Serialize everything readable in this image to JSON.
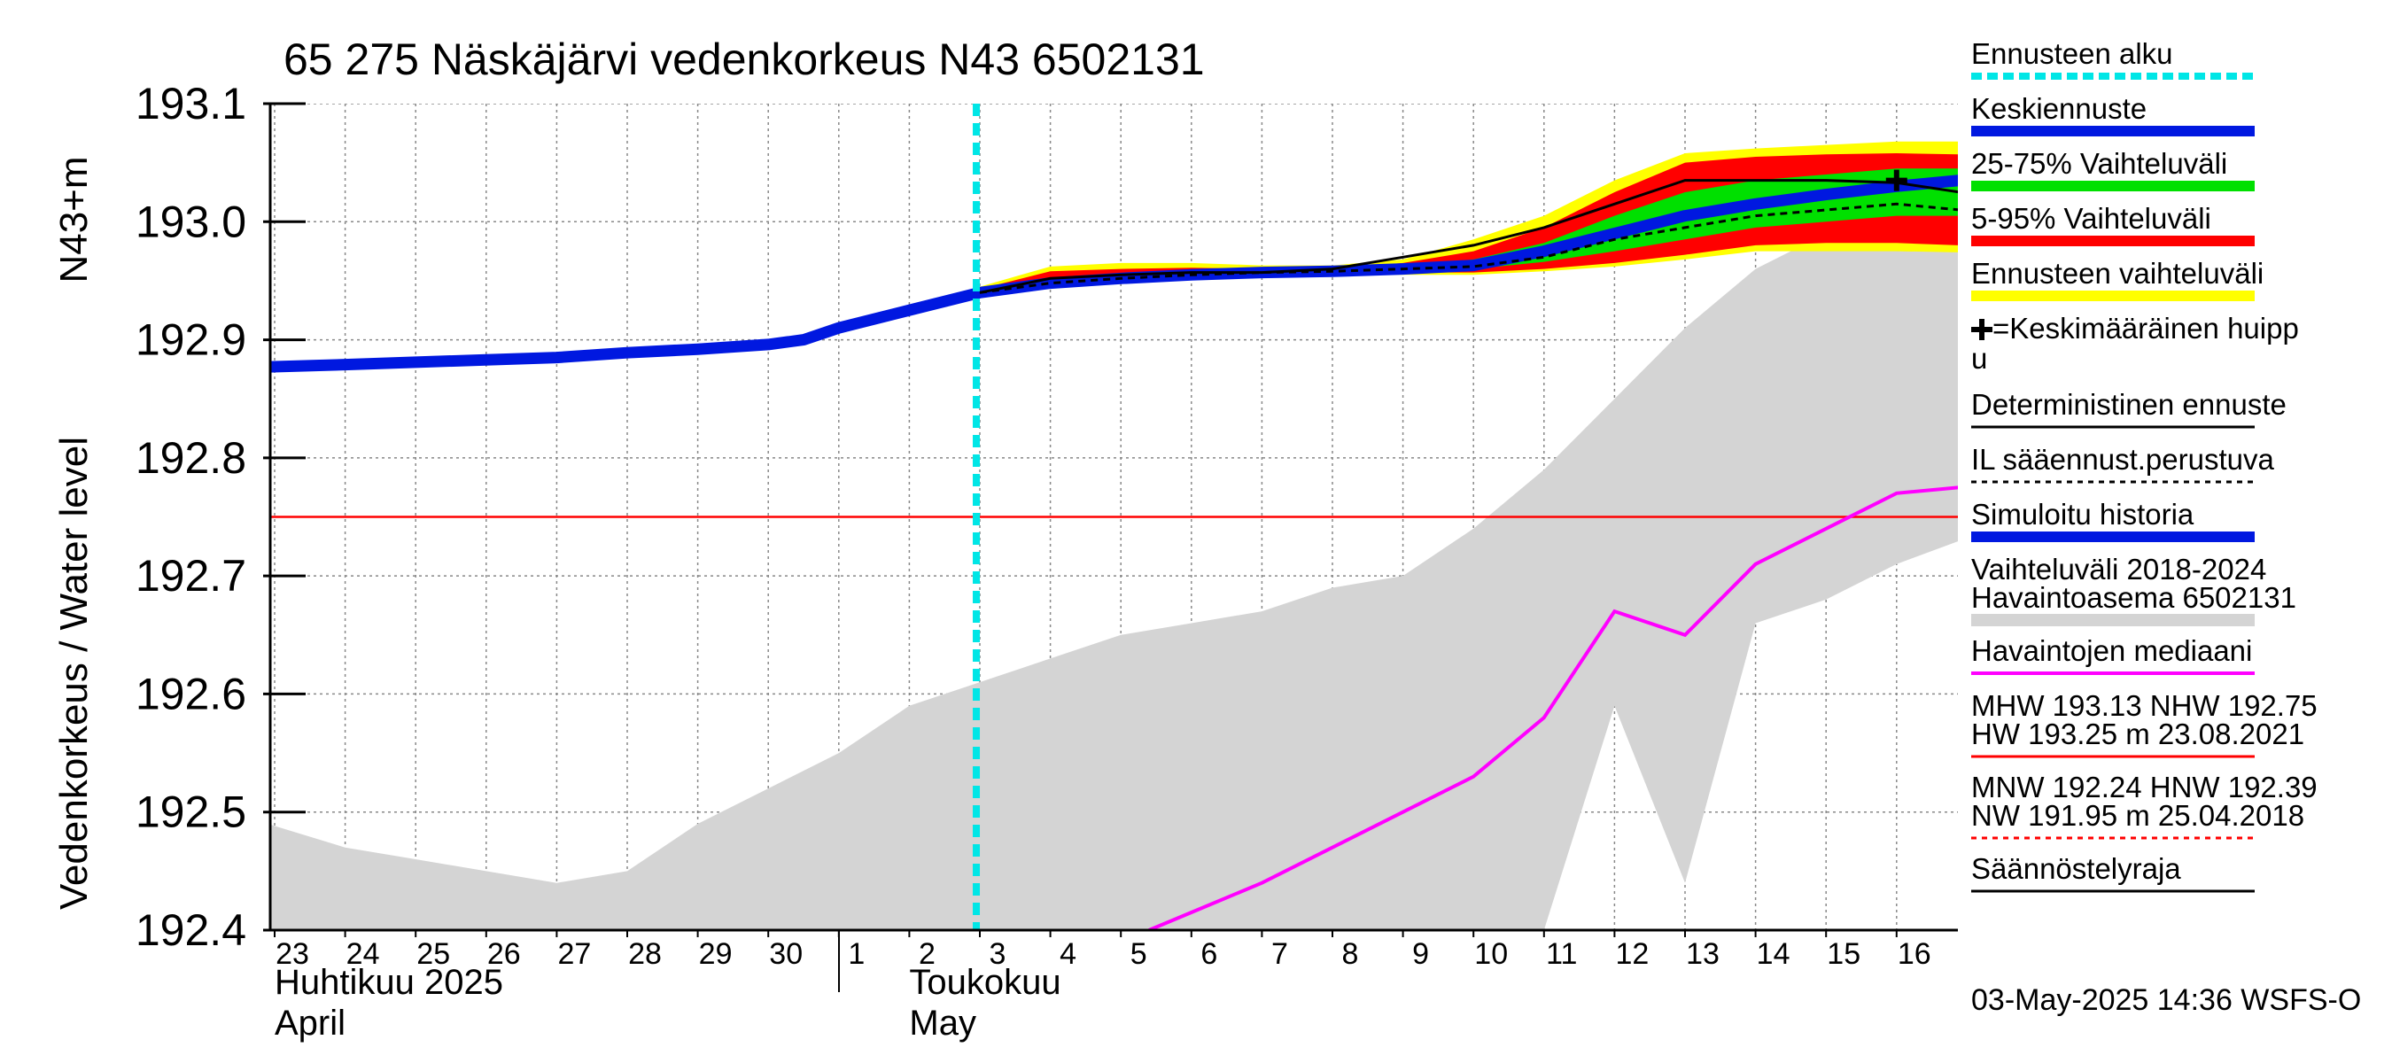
{
  "chart_data": {
    "type": "line",
    "title": "65 275 Näskäjärvi vedenkorkeus N43 6502131",
    "ylabel_main": "Vedenkorkeus / Water level",
    "ylabel_unit": "N43+m",
    "ylim": [
      192.4,
      193.1
    ],
    "yticks": [
      "192.4",
      "192.5",
      "192.6",
      "192.7",
      "192.8",
      "192.9",
      "193.0",
      "193.1"
    ],
    "ytick_values": [
      192.4,
      192.5,
      192.6,
      192.7,
      192.8,
      192.9,
      193.0,
      193.1
    ],
    "xlim": [
      -0.1,
      23.9
    ],
    "days": [
      {
        "label": "23",
        "x": 0
      },
      {
        "label": "24",
        "x": 1
      },
      {
        "label": "25",
        "x": 2
      },
      {
        "label": "26",
        "x": 3
      },
      {
        "label": "27",
        "x": 4
      },
      {
        "label": "28",
        "x": 5
      },
      {
        "label": "29",
        "x": 6
      },
      {
        "label": "30",
        "x": 7
      },
      {
        "label": "1",
        "x": 8
      },
      {
        "label": "2",
        "x": 9
      },
      {
        "label": "3",
        "x": 10
      },
      {
        "label": "4",
        "x": 11
      },
      {
        "label": "5",
        "x": 12
      },
      {
        "label": "6",
        "x": 13
      },
      {
        "label": "7",
        "x": 14
      },
      {
        "label": "8",
        "x": 15
      },
      {
        "label": "9",
        "x": 16
      },
      {
        "label": "10",
        "x": 17
      },
      {
        "label": "11",
        "x": 18
      },
      {
        "label": "12",
        "x": 19
      },
      {
        "label": "13",
        "x": 20
      },
      {
        "label": "14",
        "x": 21
      },
      {
        "label": "15",
        "x": 22
      },
      {
        "label": "16",
        "x": 23
      }
    ],
    "month_labels": [
      {
        "line1": "Huhtikuu  2025",
        "line2": "April",
        "x": 0
      },
      {
        "line1": "Toukokuu",
        "line2": "May",
        "x": 9
      }
    ],
    "month_divider_x": 7.5,
    "forecast_start_x": 9.95,
    "regulation_limit": 192.75,
    "series": {
      "simulated_history": {
        "name": "Simuloitu historia",
        "x": [
          -0.1,
          1,
          2,
          3,
          4,
          5,
          6,
          7,
          7.5,
          8,
          9,
          10,
          11,
          12,
          13,
          14,
          15,
          16,
          17,
          18,
          19,
          20,
          21,
          22,
          23,
          23.9
        ],
        "y": [
          192.877,
          192.879,
          192.881,
          192.883,
          192.885,
          192.889,
          192.892,
          192.896,
          192.9,
          192.91,
          192.925,
          192.94,
          192.948,
          192.952,
          192.955,
          192.957,
          192.958,
          192.96,
          192.963,
          192.975,
          192.99,
          193.005,
          193.015,
          193.023,
          193.03,
          193.035
        ]
      },
      "deterministic": {
        "name": "Deterministinen ennuste",
        "x": [
          10,
          11,
          12,
          13,
          14,
          15,
          16,
          17,
          18,
          19,
          20,
          21,
          22,
          23,
          23.9
        ],
        "y": [
          192.94,
          192.952,
          192.955,
          192.957,
          192.957,
          192.96,
          192.97,
          192.98,
          192.995,
          193.015,
          193.035,
          193.035,
          193.035,
          193.033,
          193.025
        ]
      },
      "il_forecast": {
        "name": "IL sääennust.perustuva",
        "x": [
          10,
          11,
          12,
          13,
          14,
          15,
          16,
          17,
          18,
          19,
          20,
          21,
          22,
          23,
          23.9
        ],
        "y": [
          192.94,
          192.948,
          192.952,
          192.955,
          192.957,
          192.958,
          192.96,
          192.962,
          192.97,
          192.985,
          192.995,
          193.005,
          193.01,
          193.015,
          193.01
        ]
      },
      "band_yellow": {
        "name": "Ennusteen vaihteluväli",
        "x": [
          10,
          11,
          12,
          13,
          14,
          15,
          16,
          17,
          18,
          19,
          20,
          21,
          22,
          23,
          23.9
        ],
        "upper": [
          192.945,
          192.962,
          192.965,
          192.965,
          192.963,
          192.963,
          192.968,
          192.985,
          193.005,
          193.035,
          193.058,
          193.062,
          193.065,
          193.068,
          193.068
        ],
        "lower": [
          192.94,
          192.945,
          192.948,
          192.952,
          192.955,
          192.955,
          192.955,
          192.955,
          192.958,
          192.962,
          192.968,
          192.975,
          192.975,
          192.975,
          192.974
        ]
      },
      "band_red": {
        "name": "5-95% Vaihteluväli",
        "x": [
          10,
          11,
          12,
          13,
          14,
          15,
          16,
          17,
          18,
          19,
          20,
          21,
          22,
          23,
          23.9
        ],
        "upper": [
          192.943,
          192.958,
          192.96,
          192.961,
          192.96,
          192.96,
          192.965,
          192.975,
          192.995,
          193.025,
          193.05,
          193.055,
          193.057,
          193.058,
          193.057
        ],
        "lower": [
          192.94,
          192.946,
          192.949,
          192.953,
          192.956,
          192.957,
          192.957,
          192.957,
          192.96,
          192.965,
          192.972,
          192.98,
          192.982,
          192.982,
          192.98
        ]
      },
      "band_green": {
        "name": "25-75% Vaihteluväli",
        "x": [
          10,
          11,
          12,
          13,
          14,
          15,
          16,
          17,
          18,
          19,
          20,
          21,
          22,
          23,
          23.9
        ],
        "upper": [
          192.941,
          192.95,
          192.954,
          192.956,
          192.957,
          192.958,
          192.962,
          192.968,
          192.982,
          193.005,
          193.025,
          193.035,
          193.04,
          193.045,
          193.045
        ],
        "lower": [
          192.94,
          192.948,
          192.951,
          192.954,
          192.956,
          192.957,
          192.958,
          192.96,
          192.966,
          192.975,
          192.985,
          192.995,
          193.0,
          193.005,
          193.005
        ]
      },
      "history_range": {
        "name": "Vaihteluväli 2018-2024 Havaintoasema 6502131",
        "x": [
          -0.1,
          1,
          2,
          3,
          4,
          5,
          6,
          7,
          8,
          9,
          10,
          11,
          12,
          13,
          14,
          15,
          16,
          17,
          18,
          19,
          20,
          21,
          22,
          23,
          23.9
        ],
        "upper": [
          192.49,
          192.47,
          192.46,
          192.45,
          192.44,
          192.45,
          192.49,
          192.52,
          192.55,
          192.59,
          192.61,
          192.63,
          192.65,
          192.66,
          192.67,
          192.69,
          192.7,
          192.74,
          192.79,
          192.85,
          192.91,
          192.96,
          192.99,
          193.01,
          193.02
        ],
        "lower": [
          192.4,
          192.4,
          192.4,
          192.4,
          192.4,
          192.4,
          192.4,
          192.4,
          192.4,
          192.4,
          192.4,
          192.4,
          192.4,
          192.4,
          192.4,
          192.4,
          192.4,
          192.4,
          192.4,
          192.59,
          192.44,
          192.66,
          192.68,
          192.71,
          192.73
        ]
      },
      "median": {
        "name": "Havaintojen mediaani",
        "x": [
          12.4,
          13,
          14,
          15,
          16,
          17,
          18,
          19,
          20,
          21,
          22,
          23,
          23.9
        ],
        "y": [
          192.4,
          192.415,
          192.44,
          192.47,
          192.5,
          192.53,
          192.58,
          192.67,
          192.65,
          192.71,
          192.74,
          192.77,
          192.775
        ]
      }
    },
    "mean_peak": {
      "x": 23,
      "y": 193.035
    },
    "colors": {
      "simulated": "#0018e0",
      "deterministic": "#000000",
      "il": "#000000",
      "green": "#00e000",
      "red": "#ff0000",
      "yellow": "#ffff00",
      "history_range": "#d4d4d4",
      "median": "#ff00ff",
      "forecast_start": "#00e6e6",
      "regulation": "#ff0000",
      "grid": "#888888"
    },
    "legend": [
      {
        "label": "Ennusteen alku",
        "style": "dash-cyan"
      },
      {
        "label": "Keskiennuste",
        "style": "thick-blue"
      },
      {
        "label": "25-75% Vaihteluväli",
        "style": "thick-green"
      },
      {
        "label": "5-95% Vaihteluväli",
        "style": "thick-red"
      },
      {
        "label": "Ennusteen vaihteluväli",
        "style": "thick-yellow"
      },
      {
        "label": "=Keskimääräinen huipp",
        "label2": "u",
        "style": "plus"
      },
      {
        "label": "Deterministinen ennuste",
        "style": "thin-black"
      },
      {
        "label": "IL sääennust.perustuva",
        "style": "dashed-black"
      },
      {
        "label": "Simuloitu historia",
        "style": "thick-blue"
      },
      {
        "label": "Vaihteluväli 2018-2024",
        "label2": " Havaintoasema 6502131",
        "style": "thick-grey"
      },
      {
        "label": "Havaintojen mediaani",
        "style": "magenta"
      },
      {
        "label": "MHW 193.13 NHW 192.75",
        "label2": "HW 193.25 m 23.08.2021",
        "style": "thin-red"
      },
      {
        "label": "MNW 192.24 HNW 192.39",
        "label2": "NW 191.95 m 25.04.2018",
        "style": "dashed-red"
      },
      {
        "label": "Säännöstelyraja",
        "style": "thin-black"
      }
    ],
    "footer": "03-May-2025 14:36 WSFS-O"
  }
}
